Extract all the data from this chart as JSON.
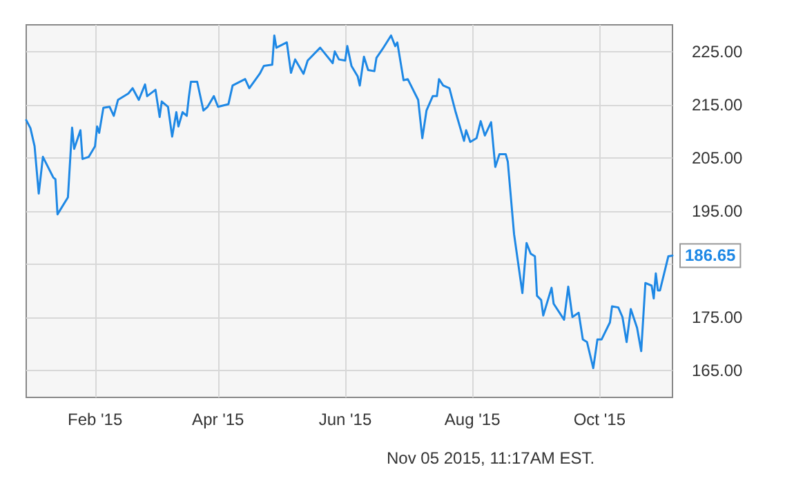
{
  "chart_data": {
    "type": "line",
    "x": [
      "2014-12-30",
      "2015-01-01",
      "2015-01-03",
      "2015-01-05",
      "2015-01-07",
      "2015-01-12",
      "2015-01-13",
      "2015-01-14",
      "2015-01-19",
      "2015-01-21",
      "2015-01-22",
      "2015-01-25",
      "2015-01-26",
      "2015-01-29",
      "2015-02-01",
      "2015-02-02",
      "2015-02-03",
      "2015-02-05",
      "2015-02-08",
      "2015-02-10",
      "2015-02-12",
      "2015-02-17",
      "2015-02-19",
      "2015-02-22",
      "2015-02-25",
      "2015-02-26",
      "2015-03-02",
      "2015-03-04",
      "2015-03-05",
      "2015-03-08",
      "2015-03-10",
      "2015-03-12",
      "2015-03-13",
      "2015-03-15",
      "2015-03-17",
      "2015-03-18",
      "2015-03-19",
      "2015-03-22",
      "2015-03-25",
      "2015-03-27",
      "2015-03-30",
      "2015-04-01",
      "2015-04-06",
      "2015-04-08",
      "2015-04-14",
      "2015-04-16",
      "2015-04-21",
      "2015-04-23",
      "2015-04-27",
      "2015-04-28",
      "2015-04-29",
      "2015-05-04",
      "2015-05-06",
      "2015-05-08",
      "2015-05-12",
      "2015-05-14",
      "2015-05-20",
      "2015-05-26",
      "2015-05-27",
      "2015-05-29",
      "2015-06-01",
      "2015-06-02",
      "2015-06-04",
      "2015-06-07",
      "2015-06-08",
      "2015-06-10",
      "2015-06-12",
      "2015-06-15",
      "2015-06-16",
      "2015-06-19",
      "2015-06-23",
      "2015-06-25",
      "2015-06-26",
      "2015-06-29",
      "2015-07-01",
      "2015-07-06",
      "2015-07-08",
      "2015-07-10",
      "2015-07-13",
      "2015-07-15",
      "2015-07-16",
      "2015-07-18",
      "2015-07-21",
      "2015-07-24",
      "2015-07-28",
      "2015-07-29",
      "2015-07-31",
      "2015-08-03",
      "2015-08-05",
      "2015-08-07",
      "2015-08-10",
      "2015-08-12",
      "2015-08-14",
      "2015-08-17",
      "2015-08-18",
      "2015-08-21",
      "2015-08-25",
      "2015-08-27",
      "2015-08-29",
      "2015-08-31",
      "2015-09-01",
      "2015-09-03",
      "2015-09-04",
      "2015-09-08",
      "2015-09-09",
      "2015-09-14",
      "2015-09-16",
      "2015-09-18",
      "2015-09-21",
      "2015-09-23",
      "2015-09-25",
      "2015-09-28",
      "2015-09-30",
      "2015-10-02",
      "2015-10-06",
      "2015-10-07",
      "2015-10-10",
      "2015-10-12",
      "2015-10-14",
      "2015-10-16",
      "2015-10-19",
      "2015-10-21",
      "2015-10-23",
      "2015-10-26",
      "2015-10-27",
      "2015-10-28",
      "2015-10-29",
      "2015-10-30",
      "2015-11-03",
      "2015-11-05"
    ],
    "series": [
      {
        "color": "#1e88e5",
        "values": [
          212.1,
          210.6,
          207.2,
          198.3,
          205.2,
          201.3,
          201.0,
          194.4,
          197.6,
          210.7,
          206.7,
          210.2,
          204.8,
          205.2,
          207.2,
          210.9,
          209.7,
          214.4,
          214.6,
          212.9,
          215.9,
          217.1,
          218.1,
          215.9,
          218.8,
          216.6,
          217.8,
          212.7,
          215.6,
          214.6,
          209.0,
          213.6,
          210.9,
          213.6,
          212.9,
          216.4,
          219.3,
          219.3,
          213.9,
          214.6,
          216.6,
          214.6,
          215.1,
          218.6,
          219.8,
          218.1,
          220.8,
          222.3,
          222.5,
          228.0,
          225.7,
          226.7,
          221.0,
          223.5,
          220.8,
          223.3,
          225.7,
          222.8,
          225.0,
          223.5,
          223.3,
          226.0,
          222.3,
          220.3,
          218.6,
          224.0,
          221.5,
          221.3,
          223.8,
          225.5,
          228.0,
          226.0,
          226.7,
          219.6,
          219.8,
          215.9,
          208.7,
          213.9,
          216.6,
          216.6,
          219.8,
          218.6,
          218.1,
          213.6,
          208.2,
          210.2,
          208.0,
          208.7,
          211.9,
          209.2,
          211.7,
          203.3,
          205.7,
          205.7,
          204.3,
          190.7,
          179.6,
          189.0,
          187.0,
          186.5,
          179.1,
          178.3,
          175.4,
          180.6,
          177.6,
          174.6,
          180.8,
          175.1,
          175.9,
          170.9,
          170.4,
          165.5,
          170.9,
          170.9,
          174.1,
          177.1,
          176.9,
          175.1,
          170.4,
          176.6,
          173.1,
          168.7,
          181.5,
          181.0,
          178.6,
          183.3,
          180.1,
          180.1,
          186.5,
          186.65
        ]
      }
    ],
    "xlim": [
      "2014-12-30",
      "2015-11-05"
    ],
    "xticks": [
      {
        "value": "2015-02-01",
        "label": "Feb '15"
      },
      {
        "value": "2015-04-01",
        "label": "Apr '15"
      },
      {
        "value": "2015-06-01",
        "label": "Jun '15"
      },
      {
        "value": "2015-08-01",
        "label": "Aug '15"
      },
      {
        "value": "2015-10-01",
        "label": "Oct '15"
      }
    ],
    "ylim": [
      160,
      230
    ],
    "yticks": [
      {
        "value": 165,
        "label": "165.00"
      },
      {
        "value": 175,
        "label": "175.00"
      },
      {
        "value": 185,
        "label": null
      },
      {
        "value": 195,
        "label": "195.00"
      },
      {
        "value": 205,
        "label": "205.00"
      },
      {
        "value": 215,
        "label": "215.00"
      },
      {
        "value": 225,
        "label": "225.00"
      }
    ],
    "grid": true,
    "marker": "none",
    "line_style": "solid",
    "annotations": [
      {
        "text": "186.65",
        "x": "2015-11-05",
        "y": 186.65
      },
      "Nov 05 2015, 11:17AM EST."
    ]
  }
}
